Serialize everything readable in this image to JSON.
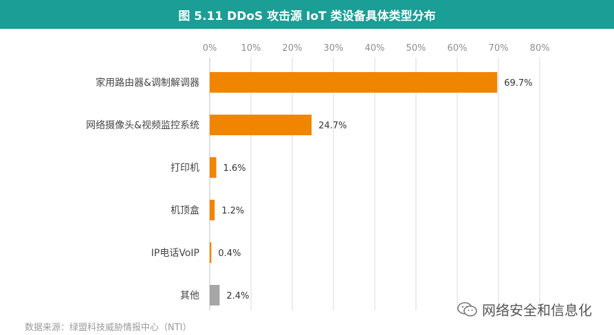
{
  "title": "图 5.11 DDoS 攻击源 IoT 类设备具体类型分布",
  "source": "数据来源：绿盟科技威胁情报中心（NTI）",
  "watermark": "网络安全和信息化",
  "colors": {
    "title_bg": "#1a9e95",
    "bar": "#f28500",
    "bar_other": "#a6a6a6",
    "grid": "#d9d9d9"
  },
  "chart_data": {
    "type": "bar",
    "orientation": "horizontal",
    "categories": [
      "家用路由器&调制解调器",
      "网络摄像头&视频监控系统",
      "打印机",
      "机顶盒",
      "IP电话VoIP",
      "其他"
    ],
    "values": [
      69.7,
      24.7,
      1.6,
      1.2,
      0.4,
      2.4
    ],
    "value_labels": [
      "69.7%",
      "24.7%",
      "1.6%",
      "1.2%",
      "0.4%",
      "2.4%"
    ],
    "xlim": [
      0,
      80
    ],
    "xticks": [
      "0%",
      "10%",
      "20%",
      "30%",
      "40%",
      "50%",
      "60%",
      "70%",
      "80%"
    ],
    "x_axis_position": "top",
    "grid": true,
    "highlight_colors": [
      "#f28500",
      "#f28500",
      "#f28500",
      "#f28500",
      "#f28500",
      "#a6a6a6"
    ]
  }
}
